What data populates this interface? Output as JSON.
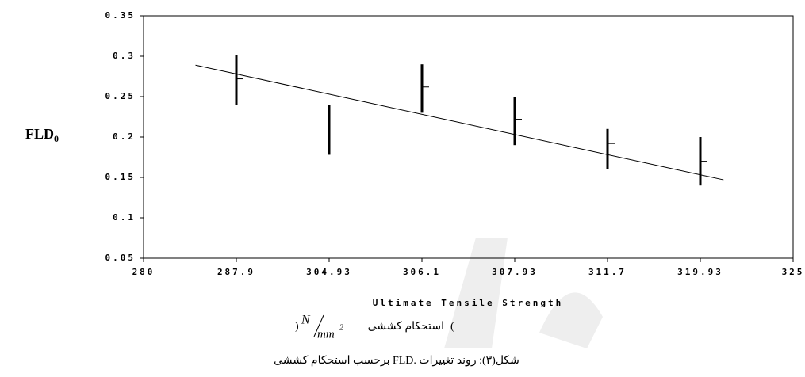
{
  "chart_data": {
    "type": "errorbar",
    "y_label": "FLD",
    "y_label_subscript": "0",
    "x_label": "Ultimate Tensile Strength",
    "x_label_fa": "استحکام کششی",
    "unit_open": "(",
    "unit_numerator": "N",
    "unit_denominator": "mm",
    "unit_exponent": "2",
    "unit_close": ")",
    "caption": "شکل(۳): روند تغییرات .FLD برحسب استحکام کششی",
    "categories": [
      "280",
      "287.9",
      "304.93",
      "306.1",
      "307.93",
      "311.7",
      "319.93",
      "325"
    ],
    "values": [
      null,
      0.272,
      null,
      0.262,
      0.222,
      0.192,
      0.17,
      null
    ],
    "low": [
      null,
      0.24,
      0.178,
      0.23,
      0.19,
      0.16,
      0.14,
      null
    ],
    "high": [
      null,
      0.301,
      0.24,
      0.29,
      0.25,
      0.21,
      0.2,
      null
    ],
    "trend": {
      "values": [
        0.289,
        0.147
      ]
    },
    "color": "#000000",
    "ylim": [
      0.05,
      0.35
    ],
    "yticks": [
      0.05,
      0.1,
      0.15,
      0.2,
      0.25,
      0.3,
      0.35
    ]
  }
}
